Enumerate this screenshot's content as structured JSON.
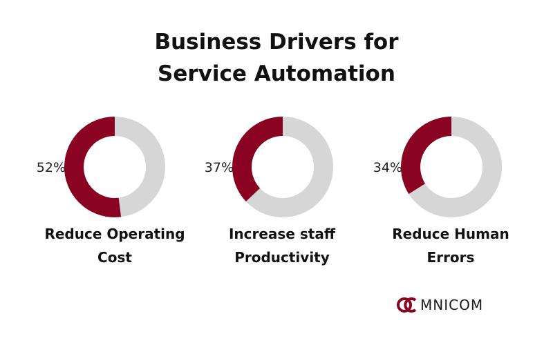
{
  "title": {
    "line1": "Business Drivers for",
    "line2": "Service Automation"
  },
  "colors": {
    "primary": "#8a0222",
    "secondary": "#d6d6d6"
  },
  "chart_data": {
    "type": "pie",
    "variant": "donut",
    "title": "Business Drivers for Service Automation",
    "items": [
      {
        "percent_label": "52%",
        "value": 52,
        "caption_line1": "Reduce Operating",
        "caption_line2": "Cost"
      },
      {
        "percent_label": "37%",
        "value": 37,
        "caption_line1": "Increase staff",
        "caption_line2": "Productivity"
      },
      {
        "percent_label": "34%",
        "value": 34,
        "caption_line1": "Reduce Human",
        "caption_line2": "Errors"
      }
    ]
  },
  "logo": {
    "brand": "OMNICOM",
    "brand_rest": "MNICOM",
    "icon": "omnicom-logo-icon"
  }
}
